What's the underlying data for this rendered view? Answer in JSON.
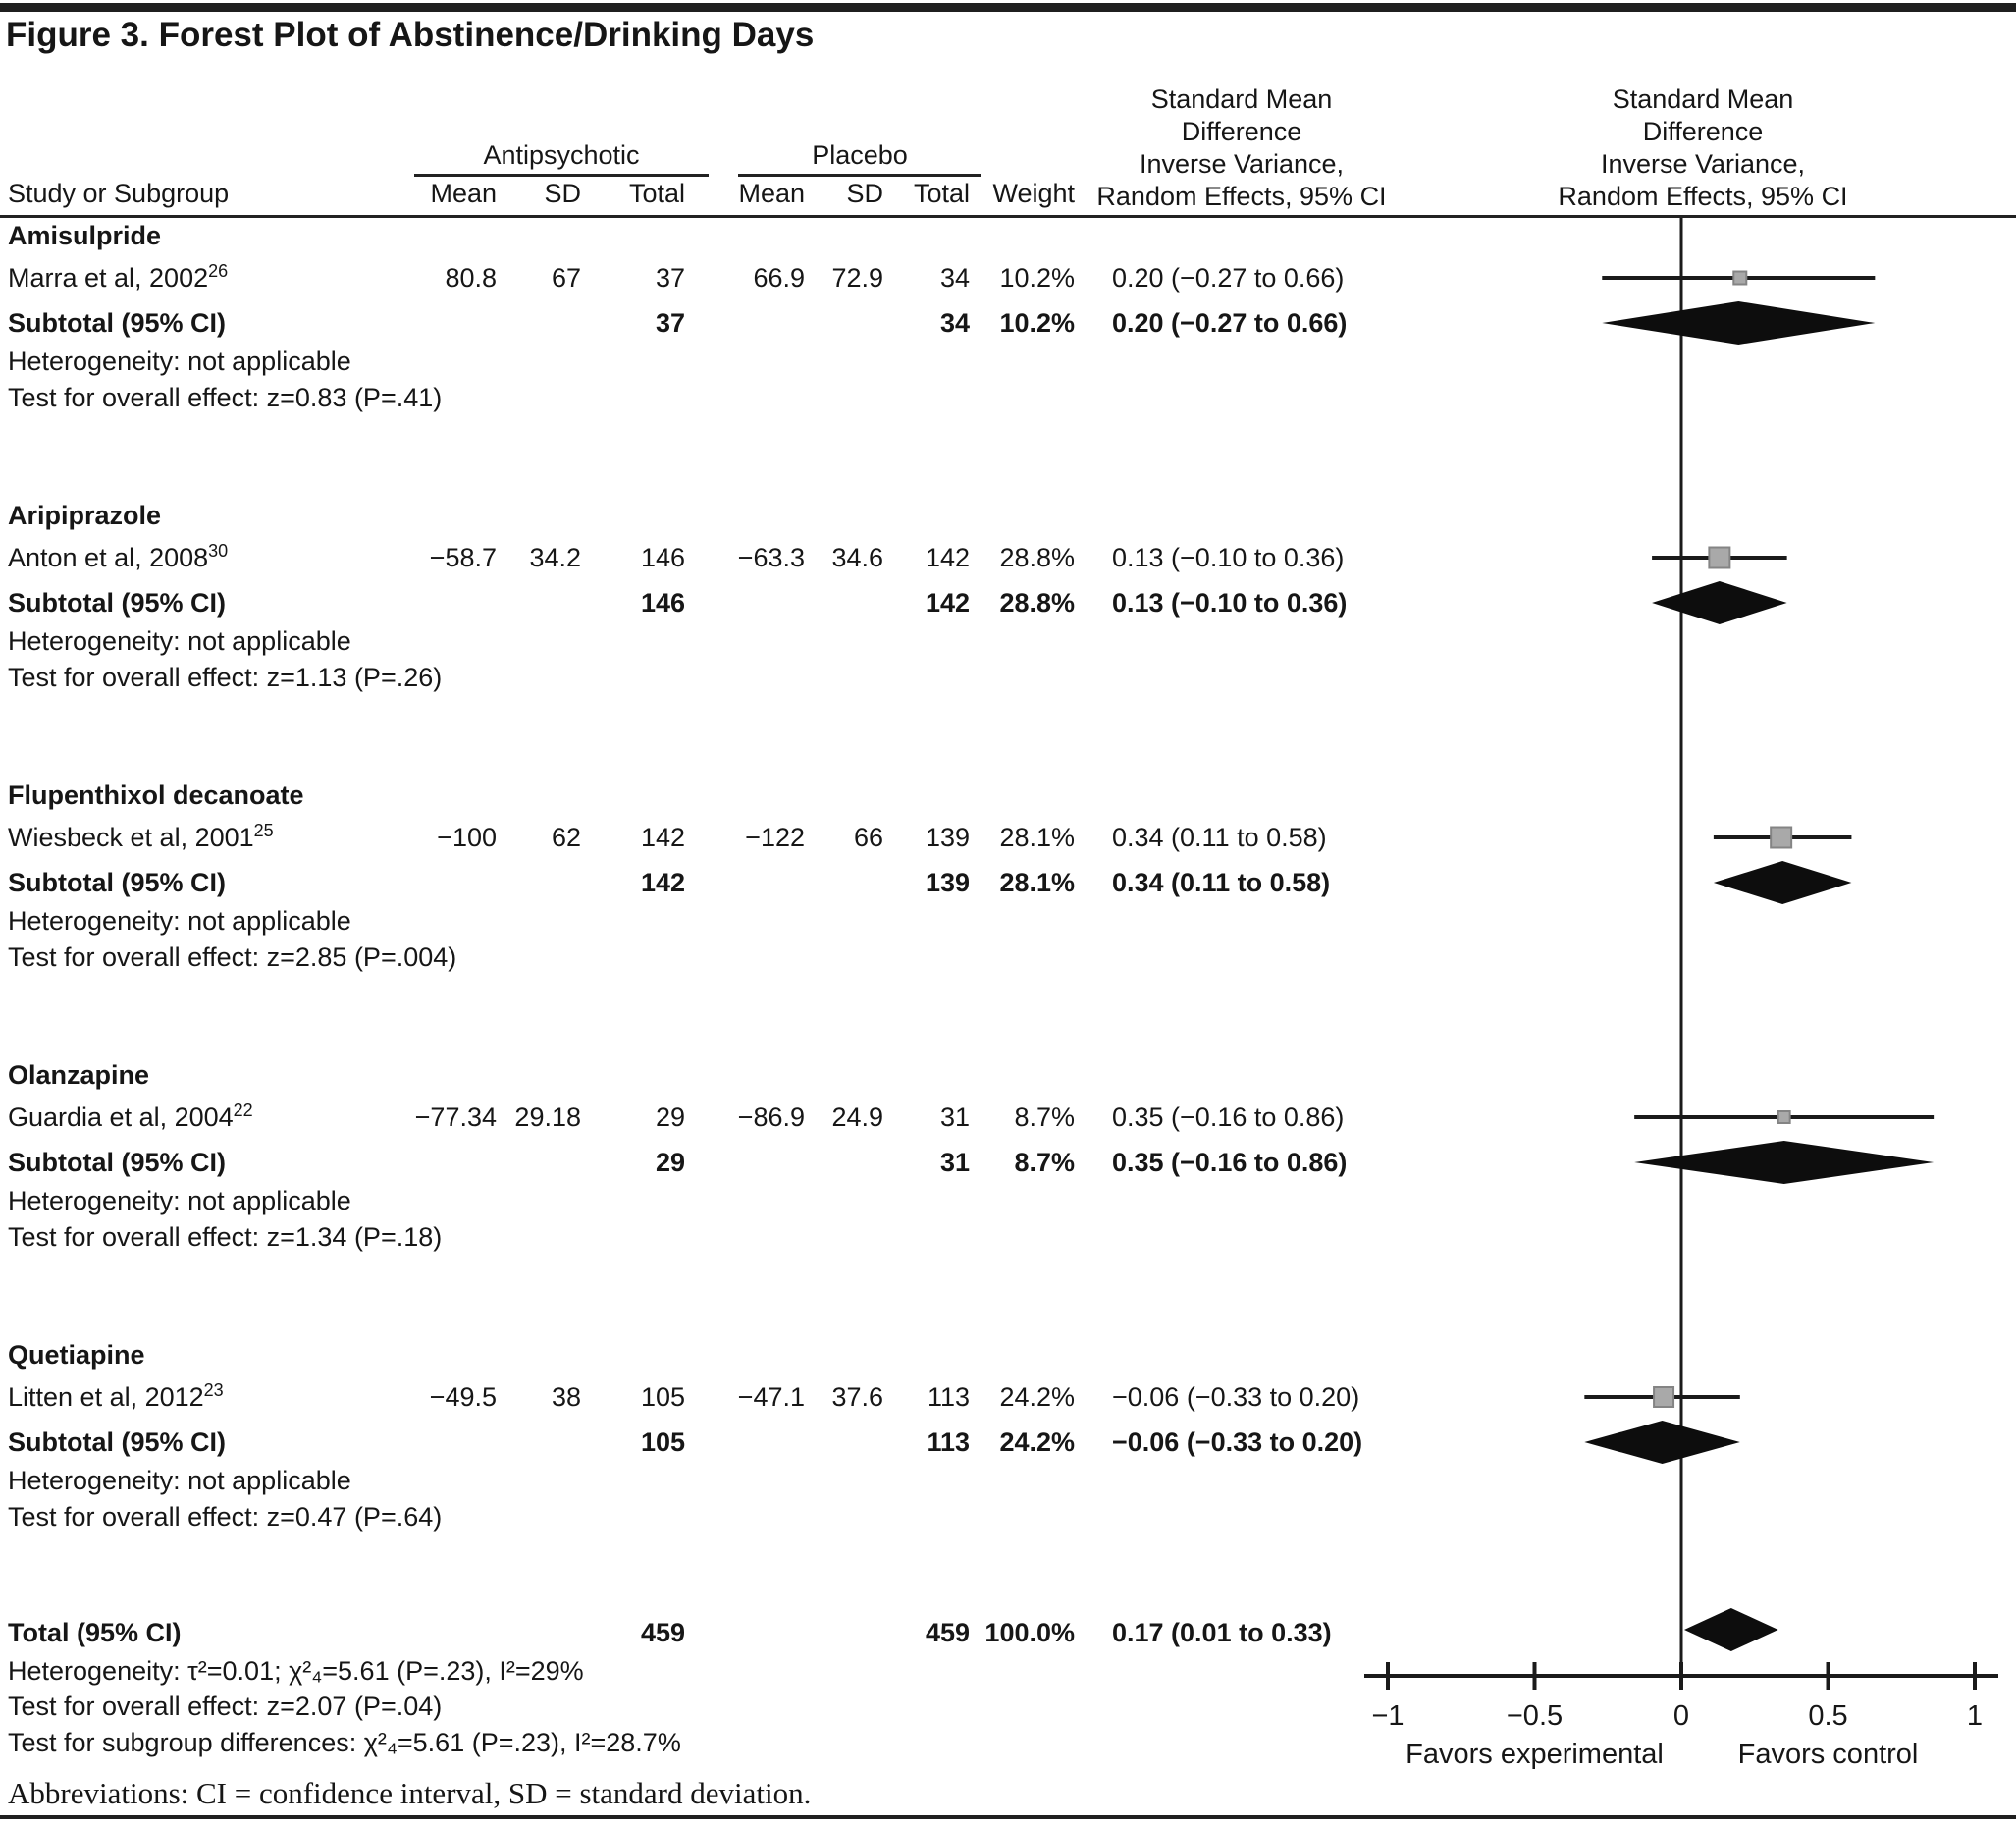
{
  "title": "Figure 3. Forest Plot of Abstinence/Drinking Days",
  "labels": {
    "study_header": "Study or Subgroup",
    "antipsychotic": "Antipsychotic",
    "placebo": "Placebo",
    "mean": "Mean",
    "sd": "SD",
    "total": "Total",
    "weight": "Weight",
    "smd_lines": [
      "Standard Mean",
      "Difference",
      "Inverse Variance,",
      "Random Effects, 95% CI"
    ],
    "subtotal": "Subtotal (95% CI)",
    "total_row": "Total (95% CI)",
    "abbreviations": "Abbreviations: CI = confidence interval, SD = standard deviation."
  },
  "chart_data": {
    "type": "forest",
    "effect_measure": "Standard Mean Difference, Inverse Variance, Random Effects, 95% CI",
    "xlim": [
      -1,
      1
    ],
    "x_ticks": [
      -1,
      -0.5,
      0,
      0.5,
      1
    ],
    "x_tick_labels": [
      "−1",
      "−0.5",
      "0",
      "0.5",
      "1"
    ],
    "zero_line": 0,
    "favors_left": "Favors experimental",
    "favors_right": "Favors control",
    "marker_color": "#a9a9a9",
    "diamond_color": "#0d0d0d",
    "groups": [
      {
        "name": "Amisulpride",
        "studies": [
          {
            "label": "Marra et al, 2002",
            "ref": "26",
            "mean1": "80.8",
            "sd1": "67",
            "total1": "37",
            "mean2": "66.9",
            "sd2": "72.9",
            "total2": "34",
            "weight": "10.2%",
            "weight_pct": 10.2,
            "ci_text": "0.20 (−0.27 to 0.66)",
            "est": 0.2,
            "lo": -0.27,
            "hi": 0.66
          }
        ],
        "subtotal": {
          "total1": "37",
          "total2": "34",
          "weight": "10.2%",
          "ci_text": "0.20 (−0.27 to 0.66)",
          "est": 0.2,
          "lo": -0.27,
          "hi": 0.66
        },
        "heterogeneity": "Heterogeneity: not applicable",
        "test": "Test for overall effect: z=0.83 (P=.41)"
      },
      {
        "name": "Aripiprazole",
        "studies": [
          {
            "label": "Anton et al, 2008",
            "ref": "30",
            "mean1": "−58.7",
            "sd1": "34.2",
            "total1": "146",
            "mean2": "−63.3",
            "sd2": "34.6",
            "total2": "142",
            "weight": "28.8%",
            "weight_pct": 28.8,
            "ci_text": "0.13 (−0.10 to 0.36)",
            "est": 0.13,
            "lo": -0.1,
            "hi": 0.36
          }
        ],
        "subtotal": {
          "total1": "146",
          "total2": "142",
          "weight": "28.8%",
          "ci_text": "0.13 (−0.10 to 0.36)",
          "est": 0.13,
          "lo": -0.1,
          "hi": 0.36
        },
        "heterogeneity": "Heterogeneity: not applicable",
        "test": "Test for overall effect: z=1.13 (P=.26)"
      },
      {
        "name": "Flupenthixol decanoate",
        "studies": [
          {
            "label": "Wiesbeck et al, 2001",
            "ref": "25",
            "mean1": "−100",
            "sd1": "62",
            "total1": "142",
            "mean2": "−122",
            "sd2": "66",
            "total2": "139",
            "weight": "28.1%",
            "weight_pct": 28.1,
            "ci_text": "0.34 (0.11 to 0.58)",
            "est": 0.34,
            "lo": 0.11,
            "hi": 0.58
          }
        ],
        "subtotal": {
          "total1": "142",
          "total2": "139",
          "weight": "28.1%",
          "ci_text": "0.34 (0.11 to 0.58)",
          "est": 0.34,
          "lo": 0.11,
          "hi": 0.58
        },
        "heterogeneity": "Heterogeneity: not applicable",
        "test": "Test for overall effect: z=2.85 (P=.004)"
      },
      {
        "name": "Olanzapine",
        "studies": [
          {
            "label": "Guardia et al, 2004",
            "ref": "22",
            "mean1": "−77.34",
            "sd1": "29.18",
            "total1": "29",
            "mean2": "−86.9",
            "sd2": "24.9",
            "total2": "31",
            "weight": "8.7%",
            "weight_pct": 8.7,
            "ci_text": "0.35 (−0.16 to 0.86)",
            "est": 0.35,
            "lo": -0.16,
            "hi": 0.86
          }
        ],
        "subtotal": {
          "total1": "29",
          "total2": "31",
          "weight": "8.7%",
          "ci_text": "0.35 (−0.16 to 0.86)",
          "est": 0.35,
          "lo": -0.16,
          "hi": 0.86
        },
        "heterogeneity": "Heterogeneity: not applicable",
        "test": "Test for overall effect: z=1.34 (P=.18)"
      },
      {
        "name": "Quetiapine",
        "studies": [
          {
            "label": "Litten et al, 2012",
            "ref": "23",
            "mean1": "−49.5",
            "sd1": "38",
            "total1": "105",
            "mean2": "−47.1",
            "sd2": "37.6",
            "total2": "113",
            "weight": "24.2%",
            "weight_pct": 24.2,
            "ci_text": "−0.06 (−0.33 to 0.20)",
            "est": -0.06,
            "lo": -0.33,
            "hi": 0.2
          }
        ],
        "subtotal": {
          "total1": "105",
          "total2": "113",
          "weight": "24.2%",
          "ci_text": "−0.06 (−0.33 to 0.20)",
          "est": -0.06,
          "lo": -0.33,
          "hi": 0.2
        },
        "heterogeneity": "Heterogeneity: not applicable",
        "test": "Test for overall effect: z=0.47 (P=.64)"
      }
    ],
    "total": {
      "total1": "459",
      "total2": "459",
      "weight": "100.0%",
      "ci_text": "0.17 (0.01 to 0.33)",
      "est": 0.17,
      "lo": 0.01,
      "hi": 0.33,
      "heterogeneity": "Heterogeneity: τ²=0.01; χ²₄=5.61 (P=.23), I²=29%",
      "test": "Test for overall effect: z=2.07 (P=.04)",
      "subgroup_test": "Test for subgroup differences: χ²₄=5.61 (P=.23), I²=28.7%"
    }
  }
}
